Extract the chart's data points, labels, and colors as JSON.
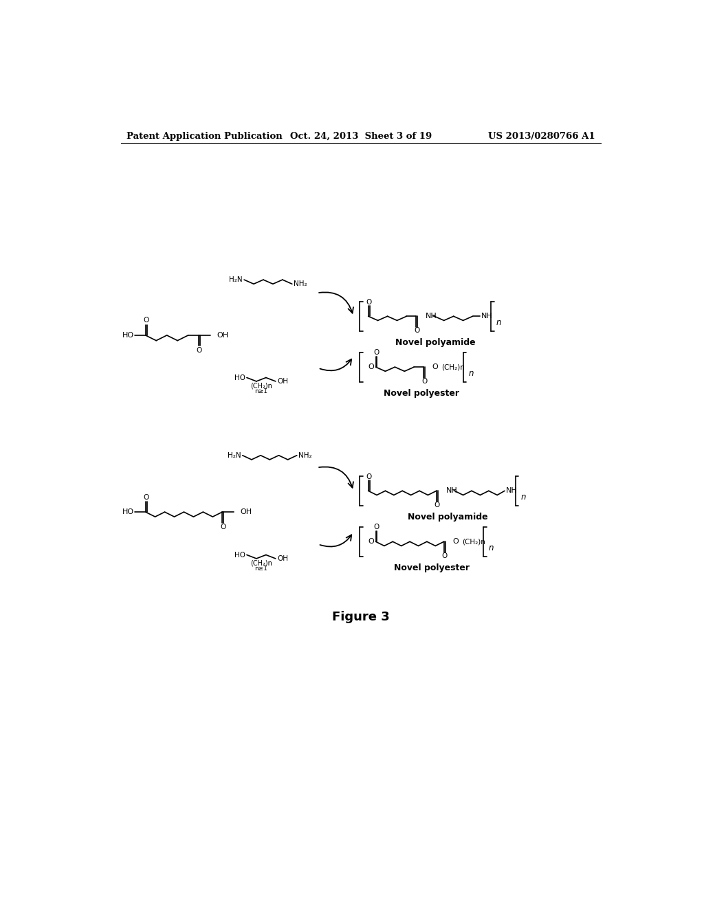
{
  "background_color": "#ffffff",
  "header_left": "Patent Application Publication",
  "header_center": "Oct. 24, 2013  Sheet 3 of 19",
  "header_right": "US 2013/0280766 A1",
  "figure_caption": "Figure 3",
  "header_fontsize": 9.5,
  "label_fontsize": 8.5
}
